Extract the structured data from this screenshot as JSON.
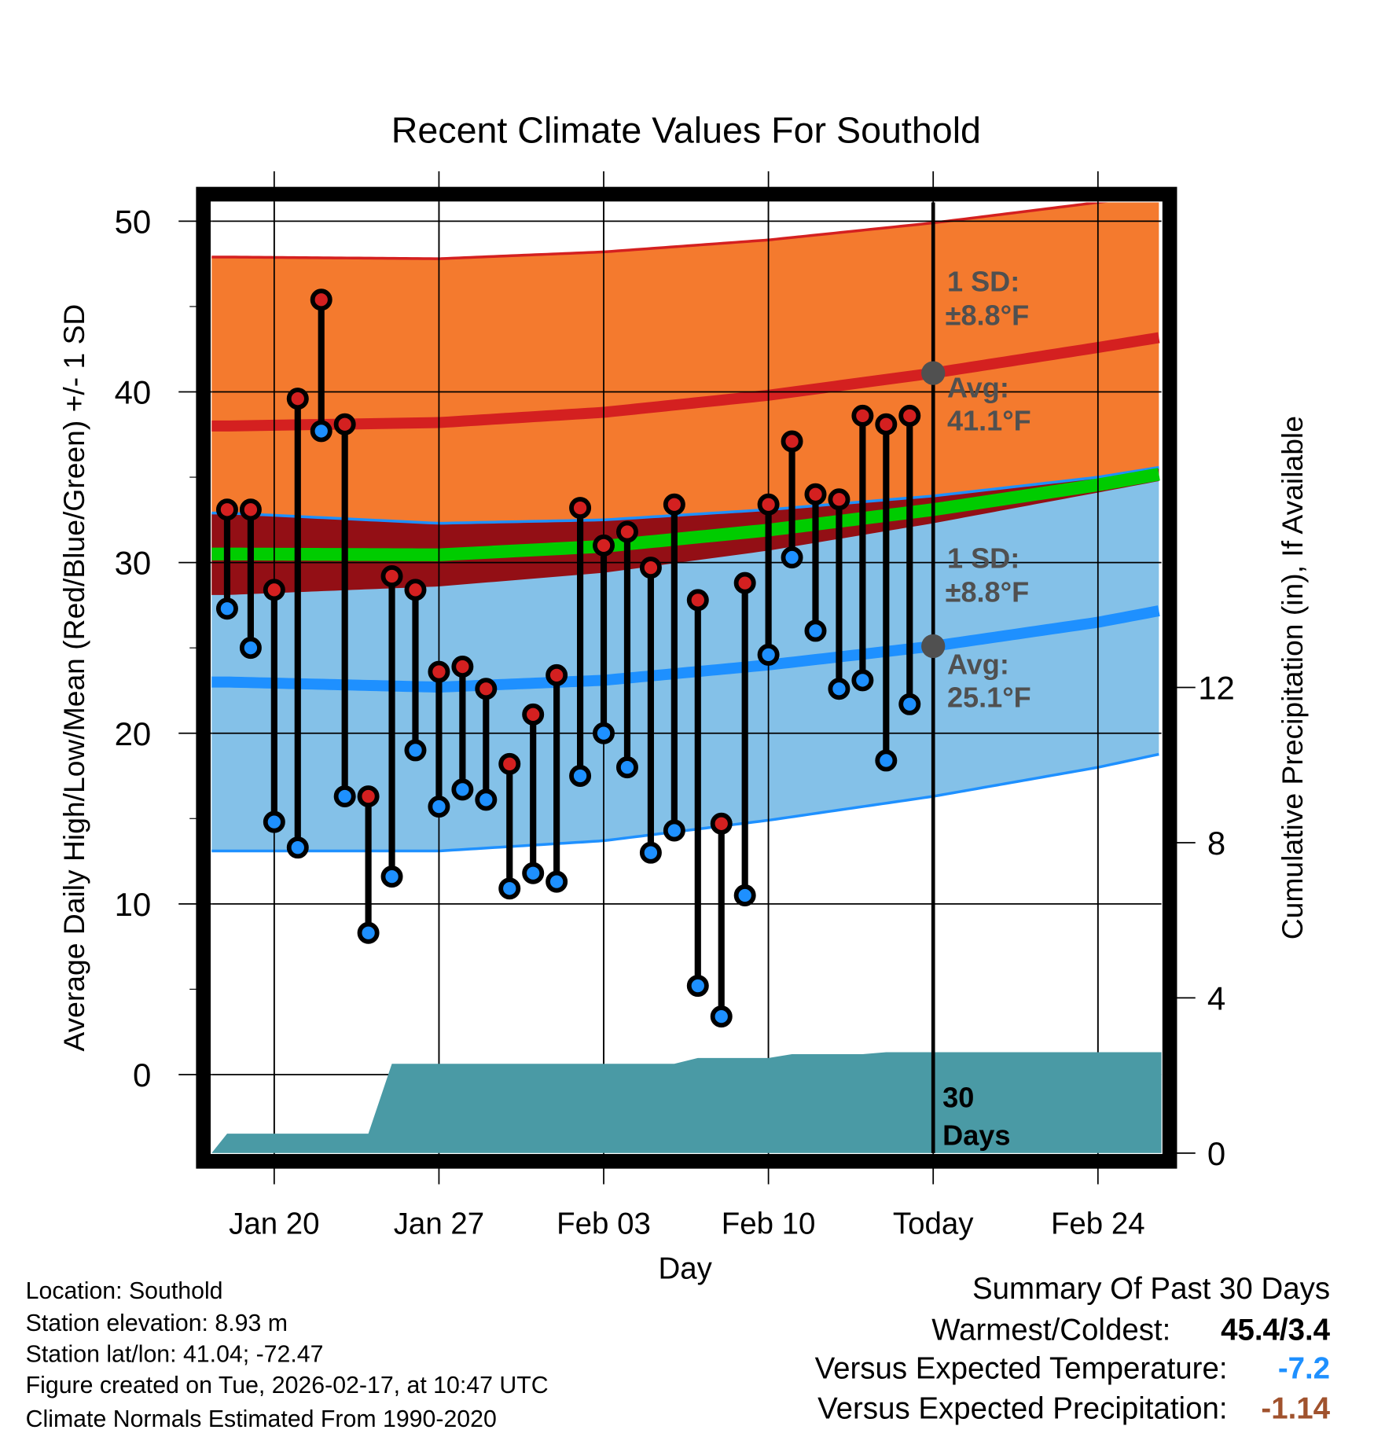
{
  "chart_data": {
    "type": "line",
    "title": "Recent Climate Values For Southold",
    "xlabel": "Day",
    "ylabel": "Average Daily High/Low/Mean (Red/Blue/Green) +/- 1 SD",
    "y2label": "Cumulative Precipitation (in), If Available",
    "ylim": [
      -4.6,
      51.1
    ],
    "y2lim": [
      0,
      24.5
    ],
    "yticks": [
      0,
      10,
      20,
      30,
      40,
      50
    ],
    "y2ticks": [
      0,
      4,
      8,
      12
    ],
    "xticks": [
      {
        "label": "Jan 20",
        "day": 2
      },
      {
        "label": "Jan 27",
        "day": 9
      },
      {
        "label": "Feb 03",
        "day": 16
      },
      {
        "label": "Feb 10",
        "day": 23
      },
      {
        "label": "Today",
        "day": 30
      },
      {
        "label": "Feb 24",
        "day": 37
      }
    ],
    "xlim_days": [
      -0.66,
      39.7
    ],
    "day_zero": "Jan 18",
    "today_day": 30,
    "dates": [
      "Jan 18",
      "Jan 19",
      "Jan 20",
      "Jan 21",
      "Jan 22",
      "Jan 23",
      "Jan 24",
      "Jan 25",
      "Jan 26",
      "Jan 27",
      "Jan 28",
      "Jan 29",
      "Jan 30",
      "Jan 31",
      "Feb 01",
      "Feb 02",
      "Feb 03",
      "Feb 04",
      "Feb 05",
      "Feb 06",
      "Feb 07",
      "Feb 08",
      "Feb 09",
      "Feb 10",
      "Feb 11",
      "Feb 12",
      "Feb 13",
      "Feb 14",
      "Feb 15",
      "Feb 16"
    ],
    "series": [
      {
        "name": "Daily High",
        "color": "#d42020",
        "values": [
          33.1,
          33.1,
          28.4,
          39.6,
          45.4,
          38.1,
          16.3,
          29.2,
          28.4,
          23.6,
          23.9,
          22.6,
          18.2,
          21.1,
          23.4,
          33.2,
          31.0,
          31.8,
          29.7,
          33.4,
          27.8,
          14.7,
          28.8,
          33.4,
          37.1,
          34.0,
          33.7,
          38.6,
          38.1,
          38.6
        ]
      },
      {
        "name": "Daily Low",
        "color": "#1e90ff",
        "values": [
          27.3,
          25.0,
          14.8,
          13.3,
          37.7,
          16.3,
          8.3,
          11.6,
          19.0,
          15.7,
          16.7,
          16.1,
          10.9,
          11.8,
          11.3,
          17.5,
          20.0,
          18.0,
          13.0,
          14.3,
          5.2,
          3.4,
          10.5,
          24.6,
          30.3,
          26.0,
          22.6,
          23.1,
          18.4,
          21.7
        ]
      },
      {
        "name": "Cumulative Precipitation",
        "color": "#4a9aa5",
        "values": [
          0.5,
          0.5,
          0.5,
          0.5,
          0.5,
          0.5,
          0.5,
          2.3,
          2.3,
          2.3,
          2.3,
          2.3,
          2.3,
          2.3,
          2.3,
          2.3,
          2.3,
          2.3,
          2.3,
          2.3,
          2.45,
          2.45,
          2.45,
          2.45,
          2.55,
          2.55,
          2.55,
          2.55,
          2.6,
          2.6
        ]
      }
    ],
    "normals": {
      "days": [
        -0.66,
        0,
        9,
        16,
        23,
        30,
        37,
        39.7
      ],
      "avg_high": [
        38.0,
        38.0,
        38.2,
        38.8,
        39.8,
        41.1,
        42.6,
        43.2
      ],
      "avg_low": [
        23.0,
        23.0,
        22.7,
        23.1,
        24.0,
        25.1,
        26.5,
        27.2
      ],
      "sd": [
        9.9,
        9.9,
        9.6,
        9.4,
        9.1,
        8.8,
        8.5,
        8.4
      ]
    },
    "colors": {
      "high_band": "#f47a2e",
      "low_band": "#84c1e8",
      "overlap": "#930f15",
      "mean": "#00cc00",
      "high_line": "#d42020",
      "low_line": "#1e90ff",
      "precip": "#4a9aa5"
    },
    "annotations": {
      "high_sd_label": "1 SD:",
      "high_sd_value": "±8.8°F",
      "high_avg_label": "Avg:",
      "high_avg_value": "41.1°F",
      "low_sd_label": "1 SD:",
      "low_sd_value": "±8.8°F",
      "low_avg_label": "Avg:",
      "low_avg_value": "25.1°F",
      "days_count": "30",
      "days_word": "Days",
      "today_avg_high": 41.1,
      "today_avg_low": 25.1
    }
  },
  "footer": {
    "location": "Location: Southold",
    "elevation": "Station elevation: 8.93 m",
    "latlon": "Station lat/lon: 41.04; -72.47",
    "created": "Figure created on Tue, 2026-02-17, at 10:47 UTC",
    "normals": "Climate Normals Estimated From 1990-2020"
  },
  "summary": {
    "title": "Summary Of Past 30 Days",
    "warmest_label": "Warmest/Coldest:",
    "warmest_value": "45.4/3.4",
    "temp_label": "Versus Expected Temperature:",
    "temp_value": "-7.2",
    "temp_color": "#1e90ff",
    "precip_label": "Versus Expected Precipitation:",
    "precip_value": "-1.14",
    "precip_color": "#a0522d"
  }
}
